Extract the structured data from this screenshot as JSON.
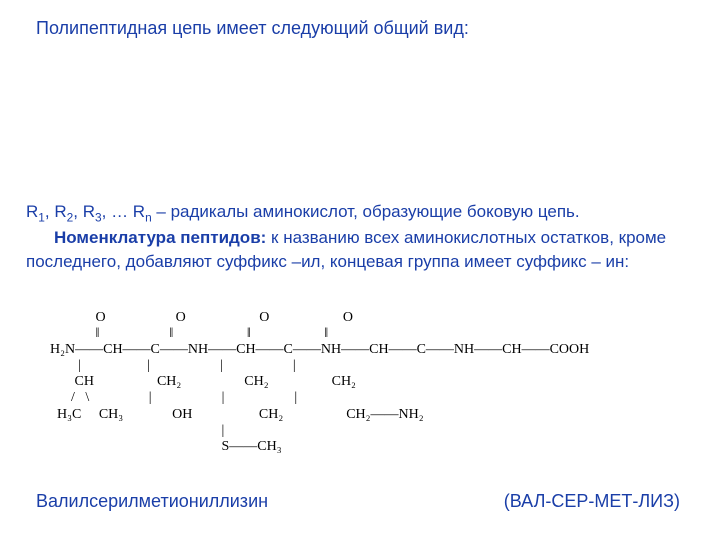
{
  "title": "Полипептидная цепь имеет следующий общий вид:",
  "desc_line1_prefix": "R",
  "desc_line1": " – радикалы аминокислот, образующие боковую цепь.",
  "desc_bold": "Номенклатура пептидов:",
  "desc_rest": " к названию всех аминокислотных остатков, кроме последнего, добавляют суффикс –ил, концевая группа имеет суффикс – ин:",
  "chem_rows": [
    "             O                    O                     O                     O",
    "             ‖                    ‖                     ‖                     ‖",
    "H₂N——CH——C——NH——CH——C——NH——CH——C——NH——CH——COOH",
    "        |                   |                    |                    |",
    "       CH                  CH₂                  CH₂                  CH₂",
    "      /   \\                 |                    |                    |",
    "  H₃C     CH₃              OH                   CH₂                  CH₂——NH₂",
    "                                                 |",
    "                                                 S——CH₃"
  ],
  "name1": "Валилсерилметиониллизин",
  "name2": "(ВАЛ-СЕР-МЕТ-ЛИЗ)",
  "colors": {
    "text": "#1a3ea8",
    "chem": "#000000",
    "bg": "#ffffff"
  }
}
